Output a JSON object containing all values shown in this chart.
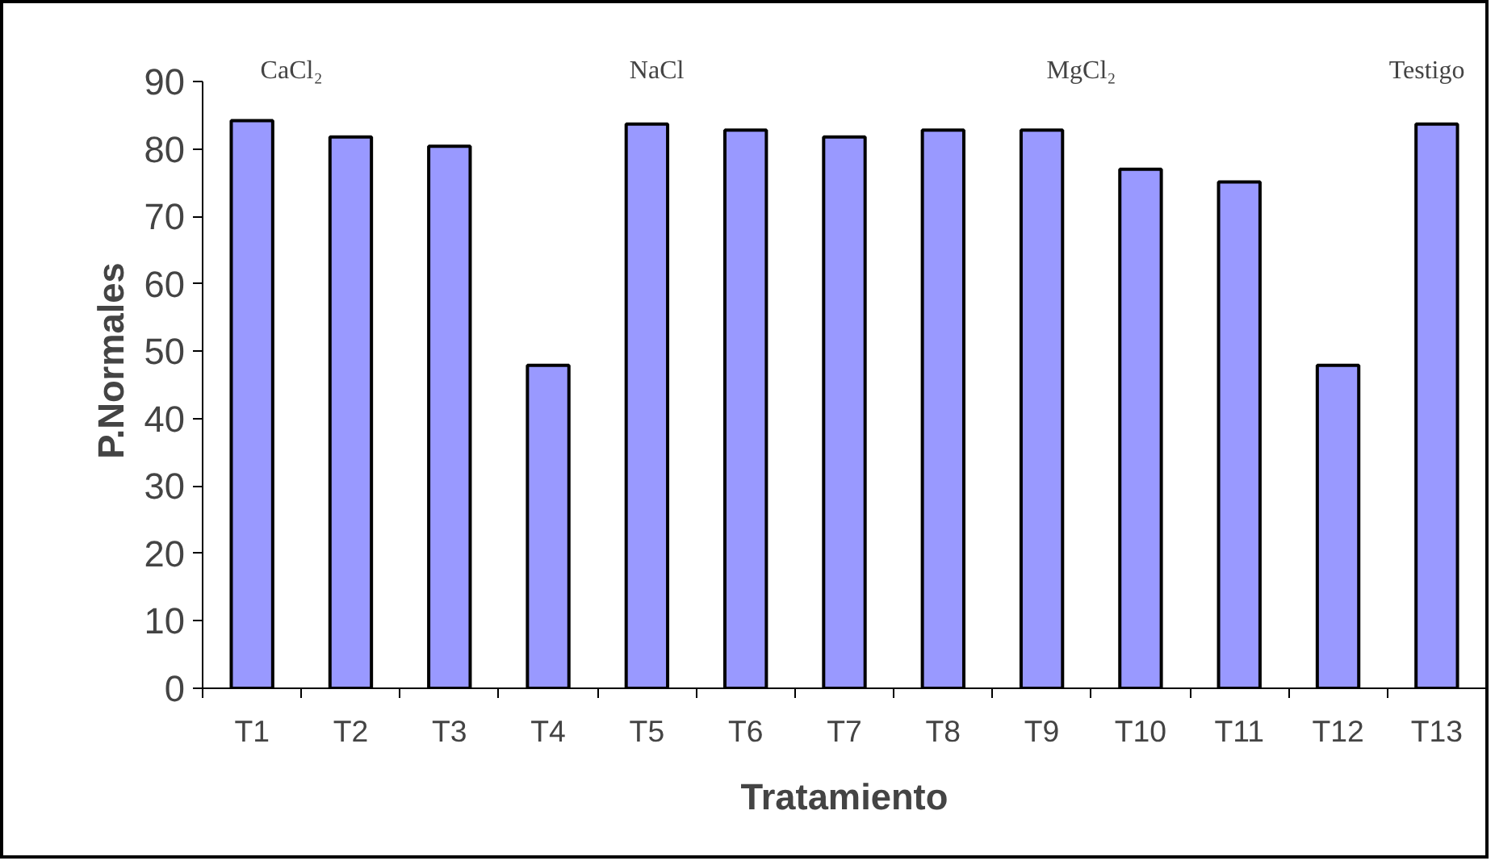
{
  "chart_data": {
    "type": "bar",
    "xlabel": "Tratamiento",
    "ylabel": "P.Normales",
    "categories": [
      "T1",
      "T2",
      "T3",
      "T4",
      "T5",
      "T6",
      "T7",
      "T8",
      "T9",
      "T10",
      "T11",
      "T12",
      "T13"
    ],
    "values": [
      84.2,
      81.8,
      80.4,
      47.9,
      83.7,
      82.8,
      81.8,
      82.8,
      82.8,
      77.0,
      75.1,
      47.9,
      83.7
    ],
    "color": "#9999ff",
    "ylim": [
      0,
      90
    ],
    "yticks": [
      0,
      10,
      20,
      30,
      40,
      50,
      60,
      70,
      80,
      90
    ],
    "grid": false,
    "annotations": [
      "CaCl₂",
      "NaCl",
      "MgCl₂",
      "Testigo"
    ]
  }
}
